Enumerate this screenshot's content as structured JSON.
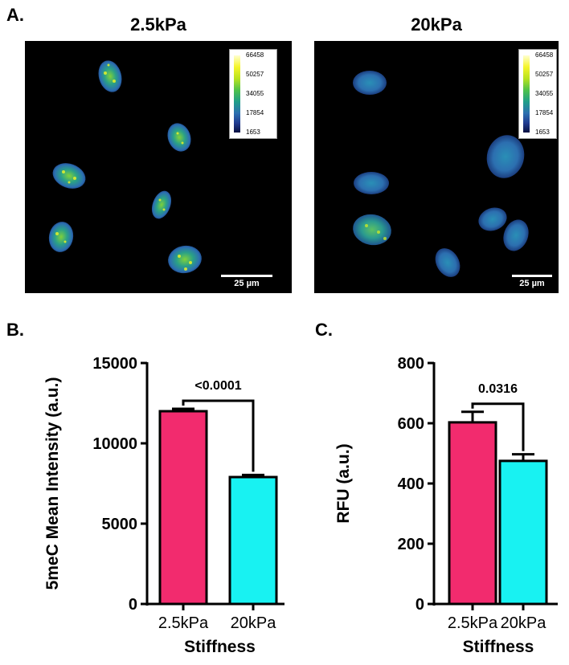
{
  "panels": {
    "a_label": "A.",
    "b_label": "B.",
    "c_label": "C."
  },
  "images": [
    {
      "title": "2.5kPa",
      "scale_bar": "25 µm",
      "colorbar_ticks": [
        "66458",
        "50257",
        "34055",
        "17854",
        "1653"
      ]
    },
    {
      "title": "20kPa",
      "scale_bar": "25 µm",
      "colorbar_ticks": [
        "66458",
        "50257",
        "34055",
        "17854",
        "1653"
      ]
    }
  ],
  "colors": {
    "bar1": "#f22b6e",
    "bar2": "#18f2f2"
  },
  "chart_data": [
    {
      "type": "bar",
      "categories": [
        "2.5kPa",
        "20kPa"
      ],
      "values": [
        12000,
        7900
      ],
      "errors": [
        150,
        130
      ],
      "xlabel": "Stiffness",
      "ylabel": "5meC Mean Intensity (a.u.)",
      "ylim": [
        0,
        15000
      ],
      "yticks": [
        "0",
        "5000",
        "10000",
        "15000"
      ],
      "significance": "<0.0001"
    },
    {
      "type": "bar",
      "categories": [
        "2.5kPa",
        "20kPa"
      ],
      "values": [
        603,
        475
      ],
      "errors": [
        35,
        22
      ],
      "xlabel": "Stiffness",
      "ylabel": "RFU (a.u.)",
      "ylim": [
        0,
        800
      ],
      "yticks": [
        "0",
        "200",
        "400",
        "600",
        "800"
      ],
      "significance": "0.0316"
    }
  ]
}
